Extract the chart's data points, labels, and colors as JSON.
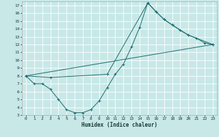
{
  "xlabel": "Humidex (Indice chaleur)",
  "xlim": [
    -0.5,
    23.5
  ],
  "ylim": [
    3,
    17.5
  ],
  "xticks": [
    0,
    1,
    2,
    3,
    4,
    5,
    6,
    7,
    8,
    9,
    10,
    11,
    12,
    13,
    14,
    15,
    16,
    17,
    18,
    19,
    20,
    21,
    22,
    23
  ],
  "yticks": [
    3,
    4,
    5,
    6,
    7,
    8,
    9,
    10,
    11,
    12,
    13,
    14,
    15,
    16,
    17
  ],
  "bg_color": "#c8e8e8",
  "line_color": "#1a6b6b",
  "grid_color": "#ffffff",
  "line1_x": [
    0,
    1,
    2,
    3,
    4,
    5,
    6,
    7,
    8,
    9,
    10,
    11,
    12,
    13,
    14,
    15,
    16,
    17,
    18,
    19,
    20,
    21,
    22,
    23
  ],
  "line1_y": [
    8.0,
    7.0,
    7.0,
    6.3,
    5.0,
    3.7,
    3.3,
    3.3,
    3.7,
    4.8,
    6.5,
    8.2,
    9.5,
    11.7,
    14.2,
    17.3,
    16.2,
    15.2,
    14.5,
    13.8,
    13.2,
    12.8,
    12.2,
    12.0
  ],
  "line2_x": [
    0,
    3,
    10,
    15,
    16,
    17,
    18,
    20,
    23
  ],
  "line2_y": [
    8.0,
    7.8,
    8.2,
    17.3,
    16.2,
    15.2,
    14.5,
    13.2,
    12.0
  ],
  "line3_x": [
    0,
    23
  ],
  "line3_y": [
    8.0,
    12.0
  ]
}
